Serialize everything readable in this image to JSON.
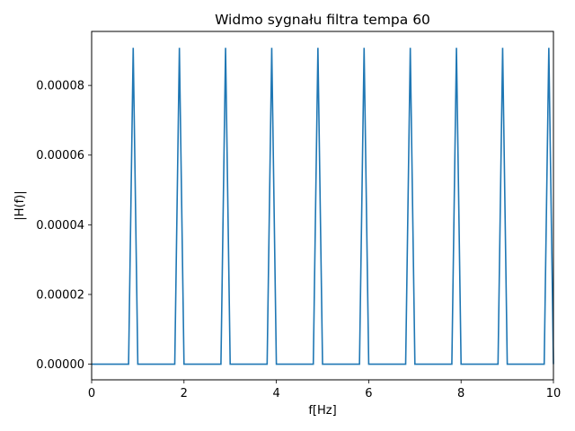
{
  "chart_data": {
    "type": "line",
    "title": "Widmo sygnału filtra tempa 60",
    "xlabel": "f[Hz]",
    "ylabel": "|H(f)|",
    "xlim": [
      0,
      10
    ],
    "ylim": [
      -4.5e-06,
      9.55e-05
    ],
    "x_ticks": [
      0,
      2,
      4,
      6,
      8,
      10
    ],
    "x_tick_labels": [
      "0",
      "2",
      "4",
      "6",
      "8",
      "10"
    ],
    "y_ticks": [
      0,
      2e-05,
      4e-05,
      6e-05,
      8e-05
    ],
    "y_tick_labels": [
      "0.00000",
      "0.00002",
      "0.00004",
      "0.00006",
      "0.00008"
    ],
    "grid": false,
    "series": [
      {
        "color": "#1f77b4",
        "x": [
          0,
          0.8,
          0.9,
          1.0,
          1.8,
          1.9,
          2.0,
          2.8,
          2.9,
          3.0,
          3.8,
          3.9,
          4.0,
          4.8,
          4.9,
          5.0,
          5.8,
          5.9,
          6.0,
          6.8,
          6.9,
          7.0,
          7.8,
          7.9,
          8.0,
          8.8,
          8.9,
          9.0,
          9.8,
          9.9,
          10.0
        ],
        "y": [
          0,
          0,
          9.08e-05,
          0,
          0,
          9.08e-05,
          0,
          0,
          9.08e-05,
          0,
          0,
          9.08e-05,
          0,
          0,
          9.08e-05,
          0,
          0,
          9.08e-05,
          0,
          0,
          9.08e-05,
          0,
          0,
          9.08e-05,
          0,
          0,
          9.08e-05,
          0,
          0,
          9.08e-05,
          0
        ]
      }
    ]
  }
}
